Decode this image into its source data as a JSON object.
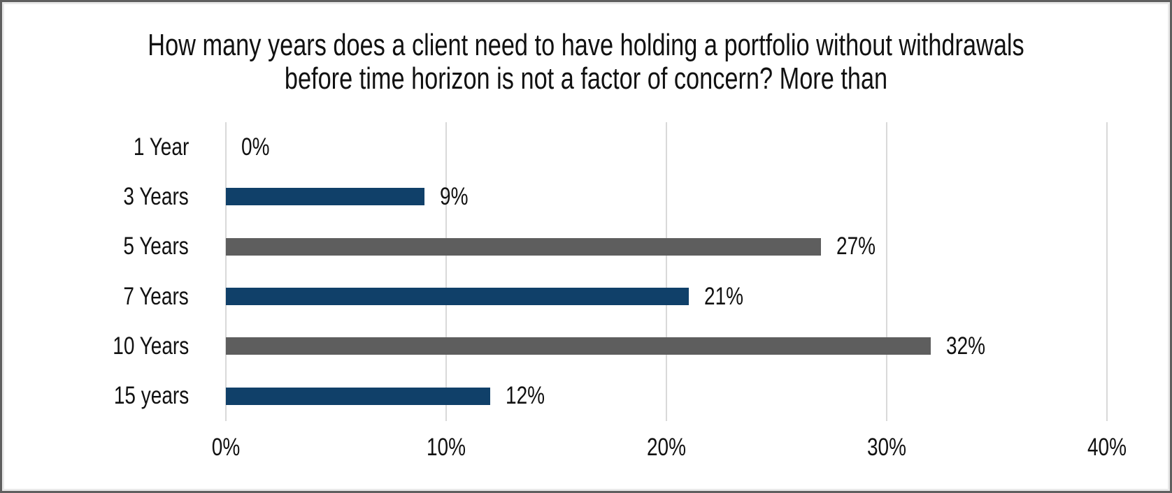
{
  "chart_data": {
    "type": "bar",
    "orientation": "horizontal",
    "title": "How many years does a client need to have holding a portfolio without withdrawals before time horizon is not a factor of concern? More than",
    "categories": [
      "1 Year",
      "3 Years",
      "5 Years",
      "7 Years",
      "10 Years",
      "15 years"
    ],
    "values": [
      0,
      9,
      27,
      21,
      32,
      12
    ],
    "value_labels": [
      "0%",
      "9%",
      "27%",
      "21%",
      "32%",
      "12%"
    ],
    "bar_colors": [
      "#104069",
      "#104069",
      "#5e5e5e",
      "#104069",
      "#5e5e5e",
      "#104069"
    ],
    "xlabel": "",
    "ylabel": "",
    "xlim": [
      0,
      40
    ],
    "x_ticks": [
      0,
      10,
      20,
      30,
      40
    ],
    "x_tick_labels": [
      "0%",
      "10%",
      "20%",
      "30%",
      "40%"
    ],
    "grid": "vertical-gridlines-on",
    "legend": "none",
    "colors": {
      "bar_navy": "#104069",
      "bar_gray": "#5e5e5e",
      "gridline": "#d9d9d9",
      "text": "#111111",
      "panel_border": "#5f5f5f",
      "background": "#ffffff"
    }
  }
}
